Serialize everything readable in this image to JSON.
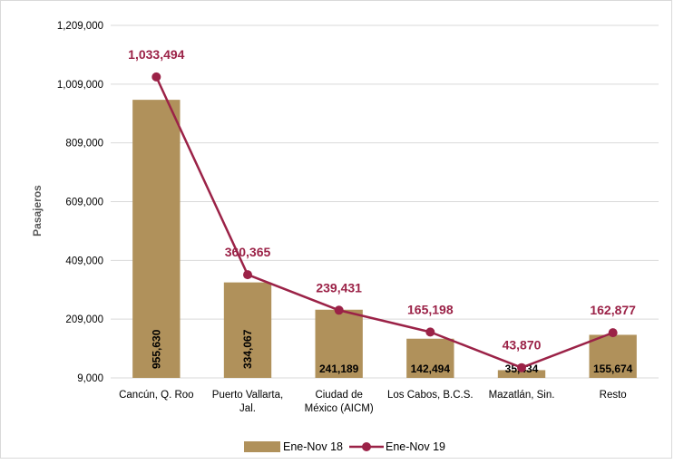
{
  "chart_data": {
    "type": "bar",
    "categories": [
      [
        "Cancún, Q. Roo"
      ],
      [
        "Puerto Vallarta,",
        "Jal."
      ],
      [
        "Ciudad de",
        "México (AICM)"
      ],
      [
        "Los Cabos, B.C.S."
      ],
      [
        "Mazatlán, Sin."
      ],
      [
        "Resto"
      ]
    ],
    "ylabel": "Pasajeros",
    "ylim": [
      9000,
      1209000
    ],
    "yticks": [
      9000,
      209000,
      409000,
      609000,
      809000,
      1009000,
      1209000
    ],
    "ytick_labels": [
      "9,000",
      "209,000",
      "409,000",
      "609,000",
      "809,000",
      "1,009,000",
      "1,209,000"
    ],
    "grid": true,
    "legend_position": "bottom",
    "series": [
      {
        "name": "Ene-Nov 18",
        "kind": "bar",
        "color": "#b0915b",
        "values": [
          955630,
          334067,
          241189,
          142494,
          35434,
          155674
        ],
        "labels": [
          "955,630",
          "334,067",
          "241,189",
          "142,494",
          "35,434",
          "155,674"
        ]
      },
      {
        "name": "Ene-Nov 19",
        "kind": "line",
        "color": "#9b2247",
        "values": [
          1033494,
          360365,
          239431,
          165198,
          43870,
          162877
        ],
        "labels": [
          "1,033,494",
          "360,365",
          "239,431",
          "165,198",
          "43,870",
          "162,877"
        ]
      }
    ]
  }
}
